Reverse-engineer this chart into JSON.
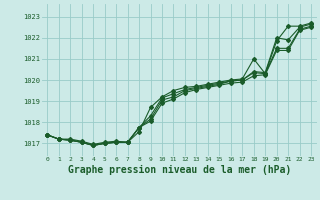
{
  "background_color": "#cceae7",
  "grid_color": "#99ccc8",
  "line_color": "#1a5c2a",
  "marker_color": "#1a5c2a",
  "xlabel": "Graphe pression niveau de la mer (hPa)",
  "xlabel_fontsize": 7.0,
  "xlim": [
    -0.5,
    23.5
  ],
  "ylim": [
    1016.4,
    1023.6
  ],
  "yticks": [
    1017,
    1018,
    1019,
    1020,
    1021,
    1022,
    1023
  ],
  "xticks": [
    0,
    1,
    2,
    3,
    4,
    5,
    6,
    7,
    8,
    9,
    10,
    11,
    12,
    13,
    14,
    15,
    16,
    17,
    18,
    19,
    20,
    21,
    22,
    23
  ],
  "series1": [
    1017.4,
    1017.2,
    1017.2,
    1017.1,
    1016.95,
    1017.05,
    1017.1,
    1017.05,
    1017.55,
    1018.7,
    1019.2,
    1019.5,
    1019.65,
    1019.7,
    1019.8,
    1019.9,
    1020.0,
    1020.05,
    1021.0,
    1020.3,
    1021.85,
    1022.55,
    1022.55,
    1022.7
  ],
  "series2": [
    1017.4,
    1017.2,
    1017.15,
    1017.05,
    1016.9,
    1017.0,
    1017.05,
    1017.05,
    1017.75,
    1018.3,
    1019.15,
    1019.35,
    1019.55,
    1019.65,
    1019.75,
    1019.85,
    1019.95,
    1020.0,
    1020.4,
    1020.35,
    1022.0,
    1021.9,
    1022.5,
    1022.65
  ],
  "series3": [
    1017.4,
    1017.2,
    1017.15,
    1017.05,
    1016.9,
    1017.0,
    1017.05,
    1017.05,
    1017.75,
    1018.15,
    1019.05,
    1019.2,
    1019.5,
    1019.6,
    1019.7,
    1019.8,
    1019.95,
    1020.0,
    1020.35,
    1020.3,
    1021.5,
    1021.5,
    1022.4,
    1022.55
  ],
  "series4": [
    1017.4,
    1017.2,
    1017.15,
    1017.05,
    1016.9,
    1017.0,
    1017.05,
    1017.05,
    1017.75,
    1018.05,
    1018.9,
    1019.1,
    1019.4,
    1019.55,
    1019.65,
    1019.75,
    1019.85,
    1019.9,
    1020.2,
    1020.25,
    1021.4,
    1021.4,
    1022.35,
    1022.5
  ]
}
